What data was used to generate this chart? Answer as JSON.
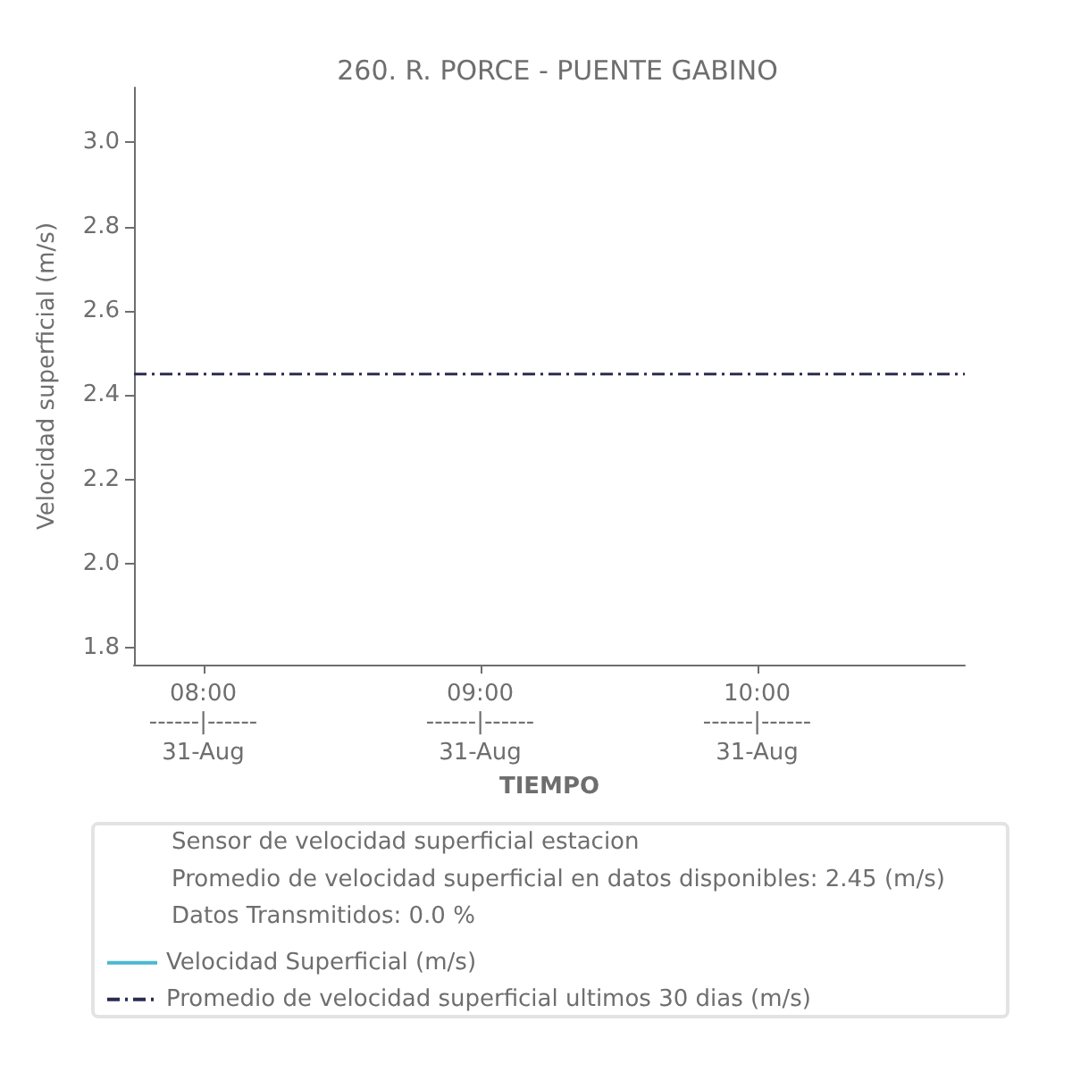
{
  "chart_data": {
    "type": "line",
    "title": "260. R. PORCE - PUENTE GABINO",
    "xlabel": "TIEMPO",
    "ylabel": "Velocidad superficial (m/s)",
    "annotations": [
      "Sensor de velocidad superficial estacion",
      "Promedio de velocidad superficial en datos disponibles: 2.45 (m/s)",
      "Datos Transmitidos: 0.0 %",
      "------|------\n31-Aug",
      "------|------\n31-Aug",
      "------|------\n31-Aug"
    ],
    "series": [
      {
        "name": "Velocidad Superficial (m/s)",
        "color": "#4bb8d0"
      },
      {
        "name": "Promedio de velocidad superficial ultimos 30 dias (m/s)",
        "color": "#2b2b52",
        "x": [
          7.75,
          10.75
        ],
        "values": [
          2.45,
          2.45
        ],
        "line_style": "dashdot"
      }
    ],
    "xlim": [
      7.75,
      10.75
    ],
    "xticks": [
      {
        "value": 8,
        "label": "08:00"
      },
      {
        "value": 9,
        "label": "09:00"
      },
      {
        "value": 10,
        "label": "10:00"
      }
    ],
    "ylim": [
      1.76,
      3.13
    ],
    "yticks": [
      1.8,
      {
        "value": 2,
        "label": "2.0"
      },
      2.2,
      2.4,
      2.6,
      2.8,
      {
        "value": 3,
        "label": "3.0"
      }
    ],
    "grid": false,
    "marker": "none",
    "legend": "bottom"
  }
}
